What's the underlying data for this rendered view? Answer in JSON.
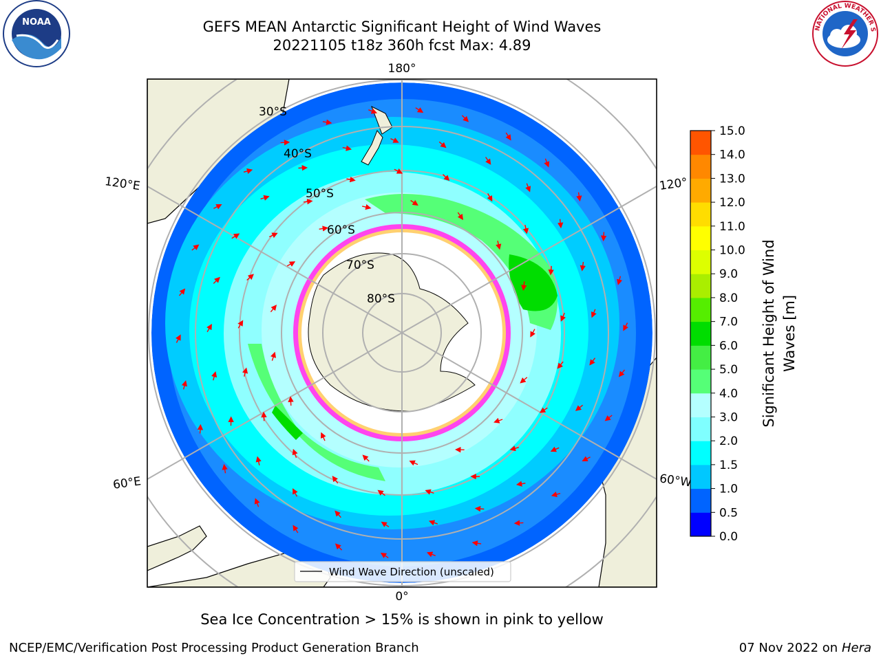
{
  "header": {
    "title_line1": "GEFS MEAN Antarctic Significant Height of Wind Waves",
    "title_line2": "20221105 t18z 360h fcst   Max: 4.89"
  },
  "map": {
    "projection": "south polar stereographic",
    "longitude_labels": [
      "180°",
      "120°E",
      "120°",
      "60°E",
      "60°W",
      "0°"
    ],
    "latitude_labels": [
      "30°S",
      "40°S",
      "50°S",
      "60°S",
      "70°S",
      "80°S"
    ],
    "legend_label": "Wind Wave Direction (unscaled)",
    "ice_note": "Sea Ice Concentration > 15% is shown in pink to yellow"
  },
  "colorbar": {
    "label_line1": "Significant Height of Wind",
    "label_line2": "Waves [m]",
    "ticks": [
      "0.0",
      "0.5",
      "1.0",
      "1.5",
      "2.0",
      "3.0",
      "4.0",
      "5.0",
      "6.0",
      "7.0",
      "8.0",
      "9.0",
      "10.0",
      "11.0",
      "12.0",
      "13.0",
      "14.0",
      "15.0"
    ],
    "colors": [
      "#0000ff",
      "#0064ff",
      "#00c8ff",
      "#00ffff",
      "#7fffff",
      "#b4ffff",
      "#55ff77",
      "#44ee44",
      "#00dd00",
      "#55ee00",
      "#aaee00",
      "#ddff00",
      "#ffff00",
      "#ffdd00",
      "#ffaa00",
      "#ff8800",
      "#ff5500",
      "#ff2200",
      "#ff0000"
    ],
    "colors_count_note": ""
  },
  "footer": {
    "left": "NCEP/EMC/Verification Post Processing Product Generation Branch",
    "right_date": "07 Nov 2022 on",
    "right_machine": "Hera"
  },
  "logos": {
    "left": "NOAA",
    "right": "NATIONAL WEATHER SERVICE"
  }
}
